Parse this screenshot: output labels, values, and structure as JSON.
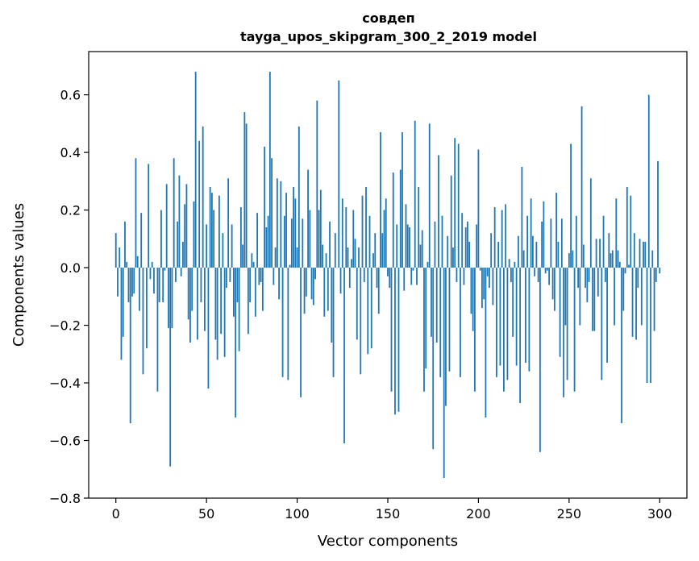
{
  "chart_data": {
    "type": "bar",
    "title": "совдеп",
    "subtitle": "tayga_upos_skipgram_300_2_2019 model",
    "xlabel": "Vector components",
    "ylabel": "Components values",
    "xlim": [
      -15,
      315
    ],
    "ylim": [
      -0.8,
      0.75
    ],
    "xticks": [
      0,
      50,
      100,
      150,
      200,
      250,
      300
    ],
    "yticks": [
      -0.8,
      -0.6,
      -0.4,
      -0.2,
      0.0,
      0.2,
      0.4,
      0.6
    ],
    "ytick_labels": [
      "−0.8",
      "−0.6",
      "−0.4",
      "−0.2",
      "0.0",
      "0.2",
      "0.4",
      "0.6"
    ],
    "grid": false,
    "bar_color": "#1f77b4",
    "values": [
      0.12,
      -0.1,
      0.07,
      -0.32,
      -0.24,
      0.16,
      0.02,
      -0.12,
      -0.54,
      -0.1,
      -0.09,
      0.38,
      0.04,
      -0.15,
      0.19,
      -0.37,
      0.0,
      -0.28,
      0.36,
      -0.04,
      0.02,
      -0.09,
      0.0,
      -0.43,
      -0.12,
      0.2,
      -0.12,
      -0.01,
      0.29,
      -0.21,
      -0.69,
      -0.21,
      0.38,
      -0.05,
      0.16,
      0.32,
      -0.03,
      0.09,
      0.22,
      0.29,
      -0.18,
      -0.26,
      -0.15,
      0.23,
      0.68,
      -0.25,
      0.44,
      -0.12,
      0.49,
      -0.22,
      0.15,
      -0.42,
      0.28,
      0.26,
      0.2,
      -0.25,
      -0.32,
      0.25,
      -0.23,
      0.12,
      -0.31,
      -0.07,
      0.31,
      -0.05,
      0.15,
      -0.17,
      -0.52,
      -0.12,
      -0.29,
      0.21,
      0.08,
      0.54,
      0.5,
      -0.23,
      -0.12,
      0.05,
      0.02,
      -0.17,
      0.19,
      -0.06,
      -0.05,
      -0.15,
      0.42,
      0.14,
      0.18,
      0.68,
      0.38,
      -0.06,
      0.07,
      0.31,
      -0.11,
      0.3,
      -0.38,
      0.18,
      0.26,
      -0.39,
      0.01,
      0.17,
      0.28,
      0.24,
      0.07,
      0.49,
      -0.45,
      0.17,
      -0.16,
      -0.1,
      0.34,
      0.2,
      -0.11,
      -0.13,
      -0.04,
      0.58,
      0.2,
      0.27,
      0.08,
      -0.17,
      0.05,
      -0.15,
      0.16,
      -0.26,
      -0.38,
      0.12,
      0.0,
      0.65,
      -0.09,
      0.24,
      -0.61,
      0.21,
      0.07,
      -0.07,
      0.03,
      0.2,
      0.1,
      -0.25,
      0.07,
      -0.37,
      0.25,
      -0.05,
      0.28,
      -0.3,
      0.18,
      -0.28,
      0.05,
      0.12,
      -0.07,
      -0.16,
      0.47,
      0.12,
      0.2,
      0.24,
      -0.03,
      -0.07,
      -0.43,
      0.33,
      -0.51,
      0.15,
      -0.5,
      0.34,
      0.47,
      -0.08,
      0.22,
      0.15,
      0.14,
      -0.06,
      -0.01,
      0.51,
      -0.06,
      0.28,
      0.08,
      0.13,
      -0.43,
      -0.35,
      0.02,
      0.5,
      -0.24,
      -0.63,
      0.16,
      -0.26,
      0.39,
      -0.38,
      0.18,
      -0.73,
      -0.48,
      0.11,
      -0.36,
      0.32,
      0.07,
      0.45,
      -0.05,
      0.43,
      -0.38,
      0.19,
      -0.06,
      0.14,
      0.16,
      0.09,
      -0.16,
      -0.22,
      -0.43,
      0.15,
      0.41,
      -0.01,
      -0.14,
      -0.11,
      -0.52,
      -0.03,
      -0.07,
      0.12,
      -0.13,
      0.21,
      -0.38,
      0.09,
      -0.34,
      0.2,
      -0.43,
      0.22,
      -0.39,
      0.03,
      -0.05,
      -0.24,
      0.02,
      -0.34,
      0.11,
      -0.47,
      0.35,
      0.06,
      -0.33,
      0.18,
      -0.36,
      0.24,
      0.11,
      -0.03,
      0.09,
      -0.05,
      -0.64,
      0.16,
      0.23,
      -0.02,
      -0.01,
      -0.06,
      0.17,
      -0.11,
      -0.15,
      0.26,
      0.09,
      -0.31,
      0.17,
      -0.45,
      -0.2,
      -0.39,
      0.05,
      0.43,
      0.06,
      -0.43,
      0.18,
      -0.07,
      -0.2,
      0.56,
      0.08,
      -0.07,
      -0.12,
      -0.05,
      0.31,
      -0.22,
      -0.22,
      0.1,
      -0.1,
      0.1,
      -0.39,
      0.18,
      -0.05,
      -0.33,
      0.12,
      0.05,
      0.06,
      -0.2,
      0.24,
      0.06,
      0.02,
      -0.54,
      -0.15,
      -0.02,
      0.28,
      0.01,
      0.25,
      -0.24,
      0.12,
      -0.25,
      -0.07,
      0.1,
      -0.2,
      0.09,
      0.09,
      -0.4,
      0.6,
      -0.4,
      0.06,
      -0.22,
      -0.05,
      0.37,
      -0.02
    ]
  }
}
